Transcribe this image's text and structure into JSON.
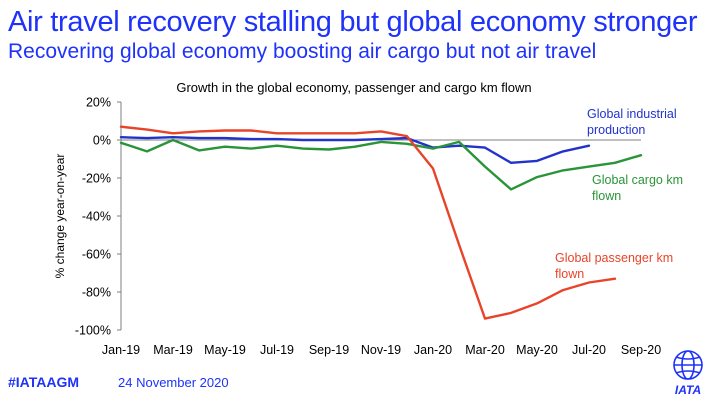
{
  "header": {
    "title": "Air travel recovery stalling but global economy stronger",
    "subtitle": "Recovering global economy boosting air cargo but not air travel"
  },
  "footer": {
    "hashtag": "#IATAAGM",
    "date": "24 November 2020",
    "logo_text": "IATA"
  },
  "colors": {
    "brand": "#1e32fa",
    "industrial": "#2233cc",
    "cargo": "#2a9438",
    "passenger": "#e8442a"
  },
  "chart_data": {
    "type": "line",
    "title": "Growth in the global economy, passenger and cargo km flown",
    "xlabel": "",
    "ylabel": "% change year-on-year",
    "ylim": [
      -100,
      20
    ],
    "yticks": [
      20,
      0,
      -20,
      -40,
      -60,
      -80,
      -100
    ],
    "ytick_labels": [
      "20%",
      "0%",
      "-20%",
      "-40%",
      "-60%",
      "-80%",
      "-100%"
    ],
    "x": [
      "Jan-19",
      "Feb-19",
      "Mar-19",
      "Apr-19",
      "May-19",
      "Jun-19",
      "Jul-19",
      "Aug-19",
      "Sep-19",
      "Oct-19",
      "Nov-19",
      "Dec-19",
      "Jan-20",
      "Feb-20",
      "Mar-20",
      "Apr-20",
      "May-20",
      "Jun-20",
      "Jul-20",
      "Aug-20",
      "Sep-20"
    ],
    "xtick_labels": [
      "Jan-19",
      "Mar-19",
      "May-19",
      "Jul-19",
      "Sep-19",
      "Nov-19",
      "Jan-20",
      "Mar-20",
      "May-20",
      "Jul-20",
      "Sep-20"
    ],
    "series": [
      {
        "name": "Global industrial production",
        "color_key": "industrial",
        "values": [
          1.5,
          1,
          1.5,
          1,
          1,
          0.5,
          0.5,
          0,
          0,
          0,
          0.5,
          1,
          -4,
          -3,
          -4,
          -12,
          -11,
          -6,
          -3,
          null,
          null
        ]
      },
      {
        "name": "Global cargo km flown",
        "color_key": "cargo",
        "values": [
          -1.5,
          -6,
          0,
          -5.5,
          -3.5,
          -4.5,
          -3,
          -4.5,
          -5,
          -3.5,
          -1,
          -2,
          -4.5,
          -1,
          -14,
          -26,
          -19.5,
          -16,
          -14,
          -12,
          -8
        ]
      },
      {
        "name": "Global passenger km flown",
        "color_key": "passenger",
        "values": [
          7,
          5.5,
          3.5,
          4.5,
          5,
          5,
          3.5,
          3.5,
          3.5,
          3.5,
          4.5,
          2,
          -15,
          -55,
          -94,
          -91,
          -86,
          -79,
          -75,
          -73,
          null
        ]
      }
    ],
    "series_labels": [
      {
        "lines": [
          "Global industrial",
          "production"
        ],
        "color_key": "industrial"
      },
      {
        "lines": [
          "Global cargo km",
          "flown"
        ],
        "color_key": "cargo"
      },
      {
        "lines": [
          "Global passenger km",
          "flown"
        ],
        "color_key": "passenger"
      }
    ]
  }
}
